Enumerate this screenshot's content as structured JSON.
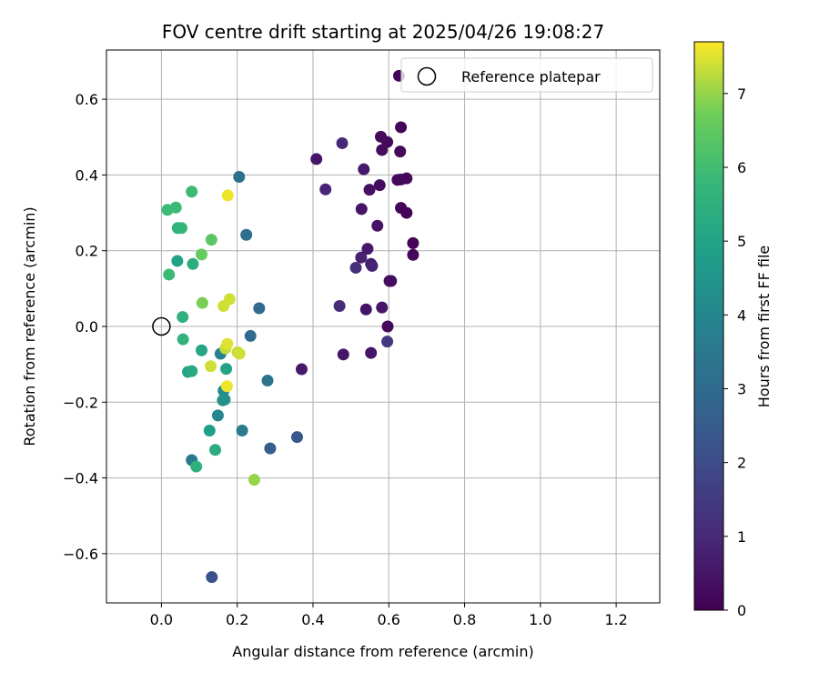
{
  "chart_data": {
    "type": "scatter",
    "title": "FOV centre drift starting at 2025/04/26 19:08:27",
    "xlabel": "Angular distance from reference (arcmin)",
    "ylabel": "Rotation from reference (arcmin)",
    "xlim": [
      -0.145,
      1.315
    ],
    "ylim": [
      -0.73,
      0.73
    ],
    "x_ticks": [
      0.0,
      0.2,
      0.4,
      0.6,
      0.8,
      1.0,
      1.2
    ],
    "x_tick_labels": [
      "0.0",
      "0.2",
      "0.4",
      "0.6",
      "0.8",
      "1.0",
      "1.2"
    ],
    "y_ticks": [
      -0.6,
      -0.4,
      -0.2,
      0.0,
      0.2,
      0.4,
      0.6
    ],
    "y_tick_labels": [
      "−0.6",
      "−0.4",
      "−0.2",
      "0.0",
      "0.2",
      "0.4",
      "0.6"
    ],
    "grid": true,
    "legend": {
      "placement": "top-right",
      "entries": [
        {
          "label": "Reference platepar",
          "marker": "open-circle",
          "x": 0.0,
          "y": 0.0
        }
      ]
    },
    "colorbar": {
      "label": "Hours from first FF file",
      "min": 0,
      "max": 7.7,
      "ticks": [
        0,
        1,
        2,
        3,
        4,
        5,
        6,
        7
      ],
      "tick_labels": [
        "0",
        "1",
        "2",
        "3",
        "4",
        "5",
        "6",
        "7"
      ],
      "colormap": "viridis"
    },
    "series": [
      {
        "points": [
          {
            "x": 0.627,
            "y": 0.662,
            "c": 0.1
          },
          {
            "x": 0.632,
            "y": 0.526,
            "c": 0.1
          },
          {
            "x": 0.63,
            "y": 0.462,
            "c": 0.15
          },
          {
            "x": 0.579,
            "y": 0.501,
            "c": 0.2
          },
          {
            "x": 0.596,
            "y": 0.487,
            "c": 0.2
          },
          {
            "x": 0.582,
            "y": 0.466,
            "c": 0.25
          },
          {
            "x": 0.477,
            "y": 0.484,
            "c": 1.0
          },
          {
            "x": 0.409,
            "y": 0.442,
            "c": 0.5
          },
          {
            "x": 0.534,
            "y": 0.415,
            "c": 0.6
          },
          {
            "x": 0.623,
            "y": 0.387,
            "c": 0.2
          },
          {
            "x": 0.632,
            "y": 0.388,
            "c": 0.2
          },
          {
            "x": 0.647,
            "y": 0.391,
            "c": 0.2
          },
          {
            "x": 0.576,
            "y": 0.373,
            "c": 0.3
          },
          {
            "x": 0.549,
            "y": 0.361,
            "c": 0.4
          },
          {
            "x": 0.433,
            "y": 0.362,
            "c": 0.9
          },
          {
            "x": 0.632,
            "y": 0.313,
            "c": 0.1
          },
          {
            "x": 0.647,
            "y": 0.3,
            "c": 0.1
          },
          {
            "x": 0.528,
            "y": 0.31,
            "c": 0.5
          },
          {
            "x": 0.57,
            "y": 0.266,
            "c": 0.5
          },
          {
            "x": 0.664,
            "y": 0.22,
            "c": 0.1
          },
          {
            "x": 0.544,
            "y": 0.205,
            "c": 0.6
          },
          {
            "x": 0.664,
            "y": 0.189,
            "c": 0.15
          },
          {
            "x": 0.527,
            "y": 0.182,
            "c": 0.8
          },
          {
            "x": 0.553,
            "y": 0.165,
            "c": 0.7
          },
          {
            "x": 0.556,
            "y": 0.16,
            "c": 0.8
          },
          {
            "x": 0.513,
            "y": 0.155,
            "c": 1.2
          },
          {
            "x": 0.602,
            "y": 0.12,
            "c": 0.3
          },
          {
            "x": 0.606,
            "y": 0.12,
            "c": 0.3
          },
          {
            "x": 0.47,
            "y": 0.054,
            "c": 1.1
          },
          {
            "x": 0.54,
            "y": 0.045,
            "c": 0.5
          },
          {
            "x": 0.582,
            "y": 0.05,
            "c": 0.5
          },
          {
            "x": 0.597,
            "y": 0.0,
            "c": 0.2
          },
          {
            "x": 0.596,
            "y": -0.04,
            "c": 1.4
          },
          {
            "x": 0.553,
            "y": -0.07,
            "c": 0.5
          },
          {
            "x": 0.48,
            "y": -0.074,
            "c": 0.5
          },
          {
            "x": 0.37,
            "y": -0.113,
            "c": 0.6
          },
          {
            "x": 0.205,
            "y": 0.395,
            "c": 3.2
          },
          {
            "x": 0.224,
            "y": 0.242,
            "c": 3.1
          },
          {
            "x": 0.258,
            "y": 0.048,
            "c": 3.0
          },
          {
            "x": 0.235,
            "y": -0.025,
            "c": 3.0
          },
          {
            "x": 0.28,
            "y": -0.143,
            "c": 3.3
          },
          {
            "x": 0.213,
            "y": -0.275,
            "c": 3.6
          },
          {
            "x": 0.287,
            "y": -0.322,
            "c": 2.6
          },
          {
            "x": 0.358,
            "y": -0.292,
            "c": 2.4
          },
          {
            "x": 0.133,
            "y": -0.662,
            "c": 2.2
          },
          {
            "x": 0.156,
            "y": -0.072,
            "c": 3.8
          },
          {
            "x": 0.08,
            "y": -0.353,
            "c": 3.5
          },
          {
            "x": 0.149,
            "y": -0.235,
            "c": 4.0
          },
          {
            "x": 0.167,
            "y": -0.193,
            "c": 4.3
          },
          {
            "x": 0.164,
            "y": -0.17,
            "c": 4.2
          },
          {
            "x": 0.162,
            "y": -0.195,
            "c": 4.4
          },
          {
            "x": 0.171,
            "y": -0.112,
            "c": 5.0
          },
          {
            "x": 0.127,
            "y": -0.275,
            "c": 4.8
          },
          {
            "x": 0.142,
            "y": -0.326,
            "c": 5.4
          },
          {
            "x": 0.092,
            "y": -0.37,
            "c": 5.5
          },
          {
            "x": 0.106,
            "y": -0.063,
            "c": 5.1
          },
          {
            "x": 0.07,
            "y": -0.12,
            "c": 5.0
          },
          {
            "x": 0.08,
            "y": -0.118,
            "c": 5.2
          },
          {
            "x": 0.057,
            "y": -0.034,
            "c": 5.6
          },
          {
            "x": 0.056,
            "y": 0.025,
            "c": 5.5
          },
          {
            "x": 0.042,
            "y": 0.173,
            "c": 5.0
          },
          {
            "x": 0.083,
            "y": 0.165,
            "c": 5.4
          },
          {
            "x": 0.02,
            "y": 0.137,
            "c": 5.9
          },
          {
            "x": 0.043,
            "y": 0.26,
            "c": 5.6
          },
          {
            "x": 0.053,
            "y": 0.26,
            "c": 5.7
          },
          {
            "x": 0.016,
            "y": 0.308,
            "c": 5.9
          },
          {
            "x": 0.038,
            "y": 0.314,
            "c": 5.9
          },
          {
            "x": 0.08,
            "y": 0.356,
            "c": 5.9
          },
          {
            "x": 0.106,
            "y": 0.19,
            "c": 6.6
          },
          {
            "x": 0.132,
            "y": 0.229,
            "c": 6.4
          },
          {
            "x": 0.108,
            "y": 0.062,
            "c": 6.8
          },
          {
            "x": 0.175,
            "y": 0.346,
            "c": 7.6
          },
          {
            "x": 0.18,
            "y": 0.072,
            "c": 7.4
          },
          {
            "x": 0.164,
            "y": 0.054,
            "c": 7.4
          },
          {
            "x": 0.169,
            "y": -0.058,
            "c": 7.3
          },
          {
            "x": 0.174,
            "y": -0.046,
            "c": 7.5
          },
          {
            "x": 0.201,
            "y": -0.068,
            "c": 7.3
          },
          {
            "x": 0.206,
            "y": -0.072,
            "c": 7.4
          },
          {
            "x": 0.13,
            "y": -0.105,
            "c": 7.4
          },
          {
            "x": 0.173,
            "y": -0.158,
            "c": 7.6
          },
          {
            "x": 0.245,
            "y": -0.405,
            "c": 7.0
          }
        ]
      }
    ]
  }
}
